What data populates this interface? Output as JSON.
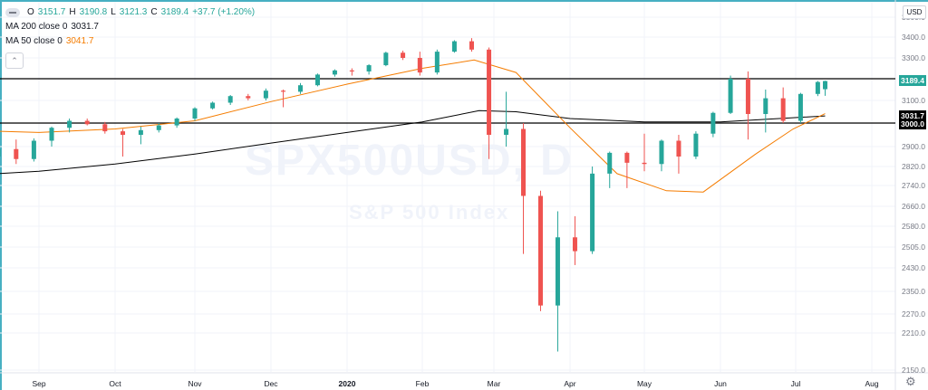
{
  "legend": {
    "ohlc": [
      {
        "label": "O",
        "value": "3151.7"
      },
      {
        "label": "H",
        "value": "3190.8"
      },
      {
        "label": "L",
        "value": "3121.3"
      },
      {
        "label": "C",
        "value": "3189.4"
      }
    ],
    "change": "+37.7 (+1.20%)",
    "ma200_label": "MA 200 close 0",
    "ma200_value": "3031.7",
    "ma50_label": "MA 50 close 0",
    "ma50_value": "3041.7"
  },
  "currency": "USD",
  "watermark": {
    "symbol": "SPX500USD, D",
    "name": "S&P 500 Index"
  },
  "price_tags": {
    "last": "3189.4",
    "ma200": "3031.7",
    "line": "3000.0"
  },
  "colors": {
    "up": "#26a69a",
    "down": "#ef5350",
    "ma50": "#f57c00",
    "ma200": "#000000",
    "hline": "#000000",
    "grid": "#f0f3fa"
  },
  "icons": [
    "chart-symbol-icon",
    "collapse-icon",
    "settings-gear-icon"
  ],
  "chart_data": {
    "type": "candlestick",
    "title": "",
    "xlabel": "",
    "ylabel": "",
    "x_ticks": [
      "Sep",
      "Oct",
      "Nov",
      "Dec",
      "2020",
      "Feb",
      "Mar",
      "Apr",
      "May",
      "Jun",
      "Jul",
      "Aug"
    ],
    "y_ticks": [
      "2150.0",
      "2210.0",
      "2270.0",
      "2350.0",
      "2430.0",
      "2505.0",
      "2580.0",
      "2660.0",
      "2740.0",
      "2820.0",
      "2900.0",
      "3000.0",
      "3100.0",
      "3200.0",
      "3300.0",
      "3400.0",
      "3500.0"
    ],
    "ylim": [
      2100,
      3560
    ],
    "horizontal_lines": [
      3200,
      3000
    ],
    "grid": true,
    "series": [
      {
        "name": "OHLC",
        "points": [
          [
            "2019-08-16",
            2860,
            2895,
            2850,
            2890
          ],
          [
            "2019-08-23",
            2890,
            2930,
            2830,
            2850
          ],
          [
            "2019-08-30",
            2850,
            2935,
            2840,
            2925
          ],
          [
            "2019-09-06",
            2925,
            2985,
            2900,
            2980
          ],
          [
            "2019-09-13",
            2980,
            3020,
            2960,
            3010
          ],
          [
            "2019-09-20",
            3010,
            3020,
            2990,
            2995
          ],
          [
            "2019-09-27",
            2995,
            3005,
            2955,
            2965
          ],
          [
            "2019-10-04",
            2965,
            2975,
            2860,
            2950
          ],
          [
            "2019-10-11",
            2950,
            2985,
            2910,
            2970
          ],
          [
            "2019-10-18",
            2970,
            3000,
            2960,
            2990
          ],
          [
            "2019-10-25",
            2990,
            3025,
            2980,
            3020
          ],
          [
            "2019-11-01",
            3020,
            3070,
            3010,
            3065
          ],
          [
            "2019-11-08",
            3065,
            3095,
            3060,
            3090
          ],
          [
            "2019-11-15",
            3090,
            3125,
            3080,
            3120
          ],
          [
            "2019-11-22",
            3120,
            3130,
            3100,
            3110
          ],
          [
            "2019-11-29",
            3110,
            3155,
            3100,
            3145
          ],
          [
            "2019-12-06",
            3145,
            3150,
            3070,
            3140
          ],
          [
            "2019-12-13",
            3140,
            3180,
            3130,
            3170
          ],
          [
            "2019-12-20",
            3170,
            3225,
            3165,
            3220
          ],
          [
            "2019-12-27",
            3220,
            3245,
            3210,
            3240
          ],
          [
            "2020-01-03",
            3240,
            3250,
            3215,
            3235
          ],
          [
            "2020-01-10",
            3235,
            3270,
            3220,
            3265
          ],
          [
            "2020-01-17",
            3265,
            3330,
            3260,
            3325
          ],
          [
            "2020-01-24",
            3325,
            3335,
            3290,
            3300
          ],
          [
            "2020-01-31",
            3300,
            3330,
            3215,
            3230
          ],
          [
            "2020-02-07",
            3230,
            3340,
            3220,
            3330
          ],
          [
            "2020-02-14",
            3330,
            3385,
            3325,
            3380
          ],
          [
            "2020-02-21",
            3380,
            3395,
            3330,
            3340
          ],
          [
            "2020-02-28",
            3340,
            3350,
            2850,
            2950
          ],
          [
            "2020-03-06",
            2950,
            3140,
            2900,
            2975
          ],
          [
            "2020-03-13",
            2975,
            3000,
            2480,
            2700
          ],
          [
            "2020-03-20",
            2700,
            2720,
            2280,
            2300
          ],
          [
            "2020-03-27",
            2300,
            2640,
            2180,
            2540
          ],
          [
            "2020-04-03",
            2540,
            2620,
            2440,
            2490
          ],
          [
            "2020-04-10",
            2490,
            2820,
            2480,
            2790
          ],
          [
            "2020-04-17",
            2790,
            2880,
            2730,
            2875
          ],
          [
            "2020-04-24",
            2875,
            2880,
            2730,
            2835
          ],
          [
            "2020-05-01",
            2835,
            2955,
            2800,
            2830
          ],
          [
            "2020-05-08",
            2830,
            2930,
            2800,
            2925
          ],
          [
            "2020-05-15",
            2925,
            2950,
            2790,
            2860
          ],
          [
            "2020-05-22",
            2860,
            2965,
            2850,
            2955
          ],
          [
            "2020-05-29",
            2955,
            3050,
            2940,
            3045
          ],
          [
            "2020-06-05",
            3045,
            3215,
            3040,
            3200
          ],
          [
            "2020-06-12",
            3200,
            3235,
            2930,
            3040
          ],
          [
            "2020-06-19",
            3040,
            3150,
            2960,
            3110
          ],
          [
            "2020-06-26",
            3110,
            3160,
            3000,
            3010
          ],
          [
            "2020-07-03",
            3010,
            3135,
            3000,
            3130
          ],
          [
            "2020-07-10",
            3130,
            3190,
            3120,
            3185
          ],
          [
            "2020-07-13",
            3151.7,
            3190.8,
            3121.3,
            3189.4
          ]
        ]
      },
      {
        "name": "MA 200 close 0",
        "points": [
          [
            "2019-08-16",
            2790
          ],
          [
            "2019-09-01",
            2800
          ],
          [
            "2019-10-01",
            2830
          ],
          [
            "2019-11-01",
            2870
          ],
          [
            "2019-12-01",
            2915
          ],
          [
            "2020-01-01",
            2960
          ],
          [
            "2020-02-01",
            3005
          ],
          [
            "2020-02-24",
            3055
          ],
          [
            "2020-03-10",
            3050
          ],
          [
            "2020-04-01",
            3020
          ],
          [
            "2020-05-01",
            3005
          ],
          [
            "2020-06-01",
            3005
          ],
          [
            "2020-07-13",
            3031.7
          ]
        ]
      },
      {
        "name": "MA 50 close 0",
        "points": [
          [
            "2019-08-16",
            2965
          ],
          [
            "2019-09-01",
            2960
          ],
          [
            "2019-10-01",
            2975
          ],
          [
            "2019-11-01",
            3010
          ],
          [
            "2019-12-01",
            3095
          ],
          [
            "2020-01-01",
            3175
          ],
          [
            "2020-02-01",
            3250
          ],
          [
            "2020-02-22",
            3290
          ],
          [
            "2020-03-10",
            3230
          ],
          [
            "2020-04-01",
            2980
          ],
          [
            "2020-04-20",
            2790
          ],
          [
            "2020-05-10",
            2720
          ],
          [
            "2020-05-25",
            2715
          ],
          [
            "2020-06-15",
            2870
          ],
          [
            "2020-06-30",
            2975
          ],
          [
            "2020-07-13",
            3041.7
          ]
        ]
      }
    ]
  }
}
